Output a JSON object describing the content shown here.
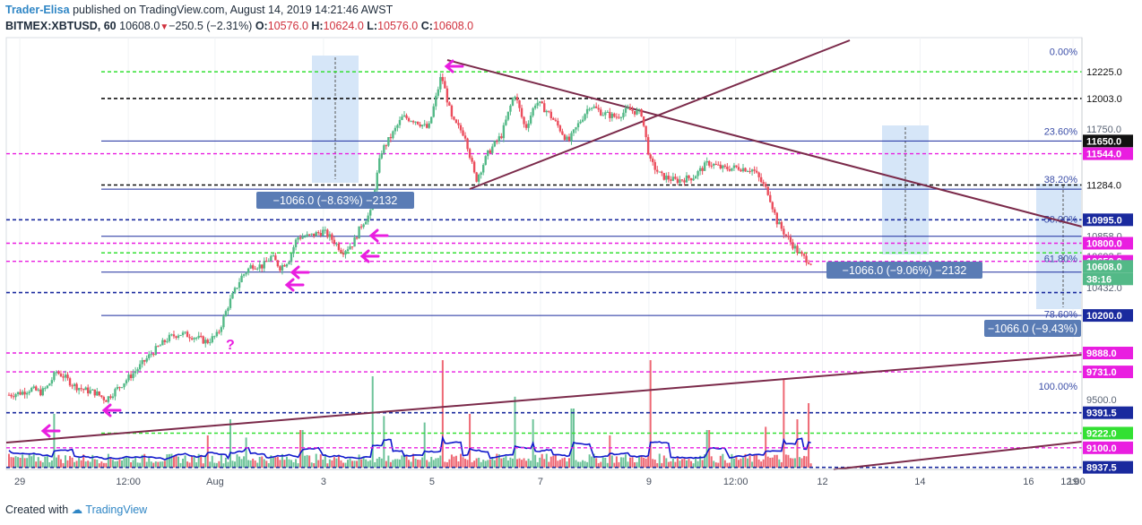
{
  "header": {
    "author": "Trader-Elisa",
    "published": "published on TradingView.com, August 14, 2019 14:21:46 AWST",
    "symbol": "BITMEX:XBTUSD, 60",
    "last": "10608.0",
    "change": "−250.5 (−2.31%)",
    "o_label": "O:",
    "o": "10576.0",
    "h_label": "H:",
    "h": "10624.0",
    "l_label": "L:",
    "l": "10576.0",
    "c_label": "C:",
    "c": "10608.0"
  },
  "footer": {
    "created_with": "Created with",
    "brand": "TradingView"
  },
  "colors": {
    "up": "#53b987",
    "down": "#eb4d5c",
    "navy": "#1a2a9e",
    "magenta": "#e91ee0",
    "green_dash": "#33e033",
    "black_dash": "#111111",
    "trend": "#7b2a4a",
    "fib": "#3b4ea8",
    "measure_fill": "#d6e6f8",
    "measure_label": "#5a7cb5",
    "volume_line": "#1018cc"
  },
  "chart_data": {
    "type": "candlestick",
    "y_axis": {
      "range": [
        8900,
        12400
      ],
      "side": "right"
    },
    "x_axis": {
      "ticks": [
        "29",
        "12:00",
        "Aug",
        "3",
        "5",
        "7",
        "9",
        "12:00",
        "12",
        "14",
        "16",
        "12:00",
        "19"
      ]
    },
    "price_path": [
      {
        "t": 0,
        "p": 9540
      },
      {
        "t": 0.6,
        "p": 9560
      },
      {
        "t": 1,
        "p": 9590
      },
      {
        "t": 1.5,
        "p": 9560
      },
      {
        "t": 1.8,
        "p": 9610
      },
      {
        "t": 2.2,
        "p": 9730
      },
      {
        "t": 2.5,
        "p": 9700
      },
      {
        "t": 3,
        "p": 9620
      },
      {
        "t": 3.5,
        "p": 9580
      },
      {
        "t": 4,
        "p": 9560
      },
      {
        "t": 4.5,
        "p": 9500
      },
      {
        "t": 5.2,
        "p": 9620
      },
      {
        "t": 6,
        "p": 9760
      },
      {
        "t": 6.6,
        "p": 9880
      },
      {
        "t": 7.4,
        "p": 10010
      },
      {
        "t": 7.9,
        "p": 10050
      },
      {
        "t": 8.5,
        "p": 10030
      },
      {
        "t": 9.2,
        "p": 9980
      },
      {
        "t": 9.7,
        "p": 10040
      },
      {
        "t": 10.2,
        "p": 10290
      },
      {
        "t": 10.8,
        "p": 10520
      },
      {
        "t": 11.3,
        "p": 10620
      },
      {
        "t": 11.8,
        "p": 10610
      },
      {
        "t": 12.2,
        "p": 10690
      },
      {
        "t": 12.6,
        "p": 10600
      },
      {
        "t": 13,
        "p": 10660
      },
      {
        "t": 13.4,
        "p": 10850
      },
      {
        "t": 14,
        "p": 10860
      },
      {
        "t": 14.6,
        "p": 10900
      },
      {
        "t": 15.1,
        "p": 10820
      },
      {
        "t": 15.5,
        "p": 10730
      },
      {
        "t": 16,
        "p": 10800
      },
      {
        "t": 16.4,
        "p": 10960
      },
      {
        "t": 16.8,
        "p": 11050
      },
      {
        "t": 17.3,
        "p": 11560
      },
      {
        "t": 17.8,
        "p": 11700
      },
      {
        "t": 18.3,
        "p": 11850
      },
      {
        "t": 18.9,
        "p": 11820
      },
      {
        "t": 19.5,
        "p": 11750
      },
      {
        "t": 20.1,
        "p": 12200
      },
      {
        "t": 20.6,
        "p": 11820
      },
      {
        "t": 21.2,
        "p": 11700
      },
      {
        "t": 21.7,
        "p": 11320
      },
      {
        "t": 22.3,
        "p": 11560
      },
      {
        "t": 22.9,
        "p": 11700
      },
      {
        "t": 23.5,
        "p": 12050
      },
      {
        "t": 24,
        "p": 11750
      },
      {
        "t": 24.5,
        "p": 11980
      },
      {
        "t": 25,
        "p": 11900
      },
      {
        "t": 25.5,
        "p": 11780
      },
      {
        "t": 26,
        "p": 11640
      },
      {
        "t": 26.5,
        "p": 11800
      },
      {
        "t": 27,
        "p": 11950
      },
      {
        "t": 27.6,
        "p": 11880
      },
      {
        "t": 28.2,
        "p": 11850
      },
      {
        "t": 28.8,
        "p": 11910
      },
      {
        "t": 29.4,
        "p": 11880
      },
      {
        "t": 29.8,
        "p": 11480
      },
      {
        "t": 30.3,
        "p": 11360
      },
      {
        "t": 31,
        "p": 11320
      },
      {
        "t": 31.8,
        "p": 11350
      },
      {
        "t": 32.5,
        "p": 11470
      },
      {
        "t": 33.2,
        "p": 11420
      },
      {
        "t": 33.9,
        "p": 11430
      },
      {
        "t": 34.6,
        "p": 11410
      },
      {
        "t": 35.3,
        "p": 11220
      },
      {
        "t": 35.7,
        "p": 10980
      },
      {
        "t": 36.2,
        "p": 10840
      },
      {
        "t": 36.8,
        "p": 10700
      },
      {
        "t": 37.3,
        "p": 10640
      }
    ],
    "x_tick_positions": [
      0.5,
      5.5,
      9.5,
      14.5,
      19.5,
      24.5,
      29.5,
      33.5,
      37.5,
      42,
      47,
      51.5,
      55.5
    ],
    "volume_spikes": [
      {
        "t": 2.1,
        "v": 0.5
      },
      {
        "t": 9.2,
        "v": 0.3
      },
      {
        "t": 10.3,
        "v": 0.45
      },
      {
        "t": 11,
        "v": 0.28
      },
      {
        "t": 13.6,
        "v": 0.35
      },
      {
        "t": 16.9,
        "v": 0.85
      },
      {
        "t": 17.4,
        "v": 0.48
      },
      {
        "t": 19.3,
        "v": 0.42
      },
      {
        "t": 20.2,
        "v": 1.0
      },
      {
        "t": 21.4,
        "v": 0.5
      },
      {
        "t": 23.5,
        "v": 0.66
      },
      {
        "t": 24.4,
        "v": 0.45
      },
      {
        "t": 26.2,
        "v": 0.55
      },
      {
        "t": 27.9,
        "v": 0.3
      },
      {
        "t": 29.8,
        "v": 1.0
      },
      {
        "t": 32.5,
        "v": 0.35
      },
      {
        "t": 35.2,
        "v": 0.38
      },
      {
        "t": 36,
        "v": 0.82
      },
      {
        "t": 36.6,
        "v": 0.45
      },
      {
        "t": 37.2,
        "v": 0.6
      }
    ],
    "horizontal_lines": [
      {
        "p": 12225.0,
        "style": "green",
        "label": "12225.0",
        "label_color": "#ffffff",
        "label_text": "#111111"
      },
      {
        "p": 12003.0,
        "style": "black",
        "label": "12003.0",
        "label_color": "#ffffff",
        "label_text": "#111111"
      },
      {
        "p": 11750.0,
        "style": "none",
        "label": "11750.0",
        "label_color": "#ffffff",
        "label_text": "#5a6475"
      },
      {
        "p": 11650.0,
        "style": "navy_solid",
        "label": "11650.0",
        "label_color": "#111111",
        "label_text": "#ffffff"
      },
      {
        "p": 11544.0,
        "style": "magenta",
        "label": "11544.0",
        "label_color": "#e91ee0",
        "label_text": "#ffffff"
      },
      {
        "p": 11284.0,
        "style": "black",
        "label": "11284.0",
        "label_color": "#ffffff",
        "label_text": "#111111"
      },
      {
        "p": 11250.0,
        "style": "navy_solid",
        "label": "",
        "label_color": "",
        "label_text": ""
      },
      {
        "p": 10995.0,
        "style": "navy",
        "label": "10995.0",
        "label_color": "#1a2a9e",
        "label_text": "#ffffff"
      },
      {
        "p": 10858.0,
        "style": "navy_solid",
        "label": "10858.0",
        "label_color": "#ffffff",
        "label_text": "#5a6475"
      },
      {
        "p": 10800.0,
        "style": "magenta",
        "label": "10800.0",
        "label_color": "#e91ee0",
        "label_text": "#ffffff"
      },
      {
        "p": 10720.0,
        "style": "green",
        "label": "",
        "label_color": "",
        "label_text": ""
      },
      {
        "p": 10693.5,
        "style": "none",
        "label": "10693.5",
        "label_color": "#ffffff",
        "label_text": "#5a6475"
      },
      {
        "p": 10650.0,
        "style": "magenta",
        "label": "10650.0",
        "label_color": "#e91ee0",
        "label_text": "#ffffff"
      },
      {
        "p": 10608.0,
        "style": "none",
        "label": "10608.0",
        "label_color": "#53b987",
        "label_text": "#ffffff"
      },
      {
        "p": 10560.0,
        "style": "navy_solid",
        "label": "",
        "label_color": "",
        "label_text": ""
      },
      {
        "p": 10390.0,
        "style": "navy",
        "label": "",
        "label_color": "",
        "label_text": ""
      },
      {
        "p": 10432.0,
        "style": "none",
        "label": "10432.0",
        "label_color": "#ffffff",
        "label_text": "#5a6475"
      },
      {
        "p": 10200.0,
        "style": "navy_solid",
        "label": "10200.0",
        "label_color": "#1a2a9e",
        "label_text": "#ffffff"
      },
      {
        "p": 10400.0,
        "style": "none",
        "label": "",
        "label_color": "",
        "label_text": ""
      },
      {
        "p": 9888.0,
        "style": "magenta",
        "label": "9888.0",
        "label_color": "#e91ee0",
        "label_text": "#ffffff"
      },
      {
        "p": 9731.0,
        "style": "magenta",
        "label": "9731.0",
        "label_color": "#e91ee0",
        "label_text": "#ffffff"
      },
      {
        "p": 9500.0,
        "style": "none",
        "label": "9500.0",
        "label_color": "#ffffff",
        "label_text": "#5a6475"
      },
      {
        "p": 9391.5,
        "style": "navy",
        "label": "9391.5",
        "label_color": "#1a2a9e",
        "label_text": "#ffffff"
      },
      {
        "p": 9222.0,
        "style": "green",
        "label": "9222.0",
        "label_color": "#33e033",
        "label_text": "#ffffff"
      },
      {
        "p": 9100.0,
        "style": "magenta",
        "label": "9100.0",
        "label_color": "#e91ee0",
        "label_text": "#ffffff"
      },
      {
        "p": 8937.5,
        "style": "navy",
        "label": "8937.5",
        "label_color": "#1a2a9e",
        "label_text": "#ffffff"
      }
    ],
    "time_badge": "38:16",
    "fib_levels": [
      {
        "label": "0.00%",
        "p": 12340
      },
      {
        "label": "23.60%",
        "p": 11680
      },
      {
        "label": "38.20%",
        "p": 11280
      },
      {
        "label": "50.00%",
        "p": 10950
      },
      {
        "label": "61.80%",
        "p": 10620
      },
      {
        "label": "78.60%",
        "p": 10160
      },
      {
        "label": "100.00%",
        "p": 9560
      }
    ],
    "measurements": [
      {
        "label": "−1066.0 (−8.63%) −2132"
      },
      {
        "label": "−1066.0 (−9.06%) −2132"
      },
      {
        "label": "−1066.0 (−9.43%)"
      }
    ],
    "question_mark": "?"
  }
}
